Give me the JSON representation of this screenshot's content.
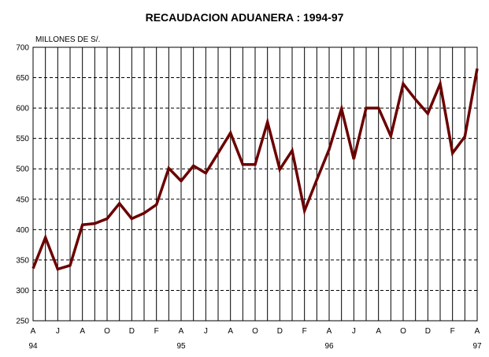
{
  "chart_data": {
    "type": "line",
    "title": "RECAUDACION ADUANERA : 1994-97",
    "ylabel": "MILLONES DE S/.",
    "xlabel": "",
    "ylim": [
      250,
      700
    ],
    "yticks": [
      "250",
      "300",
      "350",
      "400",
      "450",
      "500",
      "550",
      "600",
      "650",
      "700"
    ],
    "month_labels": [
      "A",
      "",
      "J",
      "",
      "A",
      "",
      "O",
      "",
      "D",
      "",
      "F",
      "",
      "A",
      "",
      "J",
      "",
      "A",
      "",
      "O",
      "",
      "D",
      "",
      "F",
      "",
      "A",
      "",
      "J",
      "",
      "A",
      "",
      "O",
      "",
      "D",
      "",
      "F",
      "",
      "A"
    ],
    "year_labels": [
      {
        "index": 0,
        "label": "94"
      },
      {
        "index": 12,
        "label": "95"
      },
      {
        "index": 24,
        "label": "96"
      },
      {
        "index": 36,
        "label": "97"
      }
    ],
    "grid": "horizontal dashed, vertical solid",
    "line_color": "#6b0000",
    "series": [
      {
        "values": [
          336,
          387,
          335,
          341,
          408,
          410,
          418,
          443,
          418,
          427,
          441,
          501,
          480,
          505,
          493,
          526,
          559,
          507,
          507,
          577,
          499,
          530,
          431,
          482,
          532,
          599,
          516,
          600,
          600,
          554,
          640,
          614,
          591,
          640,
          526,
          553,
          665
        ]
      }
    ]
  }
}
